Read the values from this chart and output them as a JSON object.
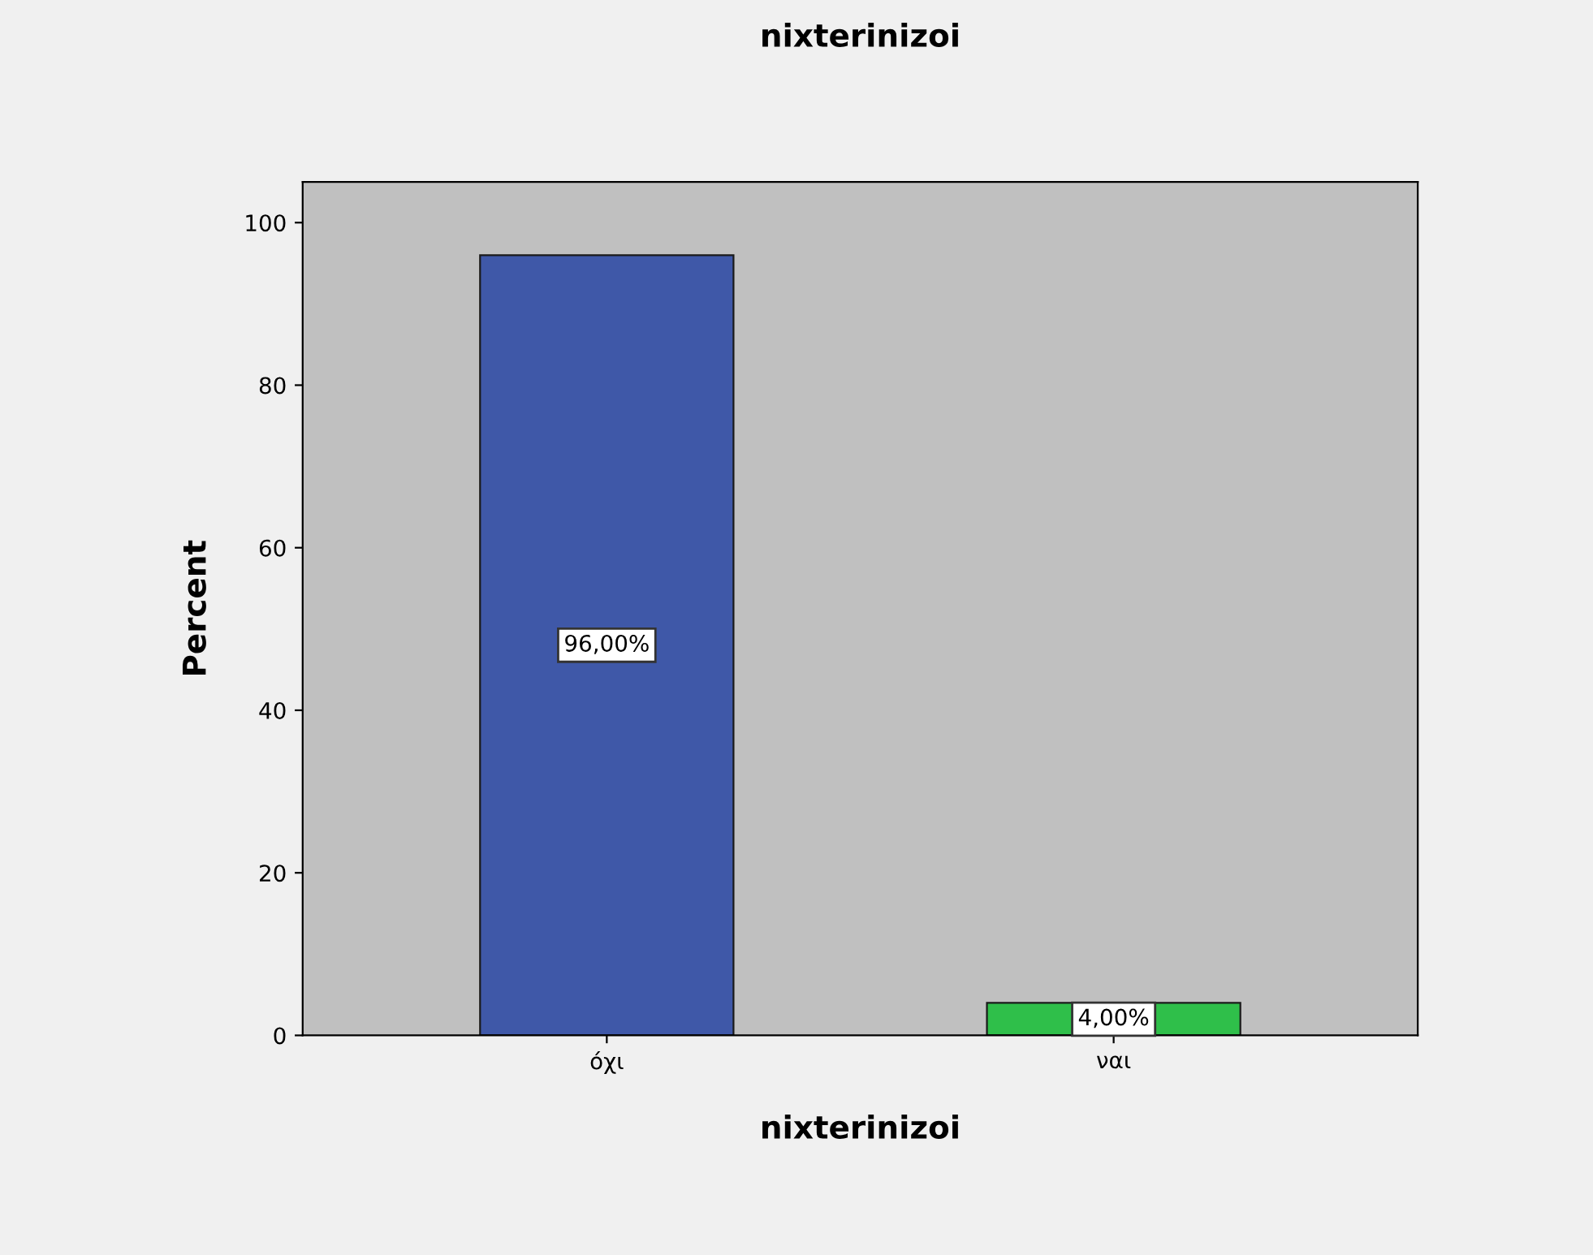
{
  "chart_data": {
    "type": "bar",
    "title": "nixterinizoi",
    "xlabel": "nixterinizoi",
    "ylabel": "Percent",
    "categories": [
      "όχι",
      "ναι"
    ],
    "values": [
      96,
      4
    ],
    "colors": [
      "#3f58a8",
      "#2fbf4a"
    ],
    "value_labels": [
      "96,00%",
      "4,00%"
    ],
    "ylim": [
      0,
      105
    ],
    "yticks": [
      0,
      20,
      40,
      60,
      80,
      100
    ],
    "grid": false
  }
}
